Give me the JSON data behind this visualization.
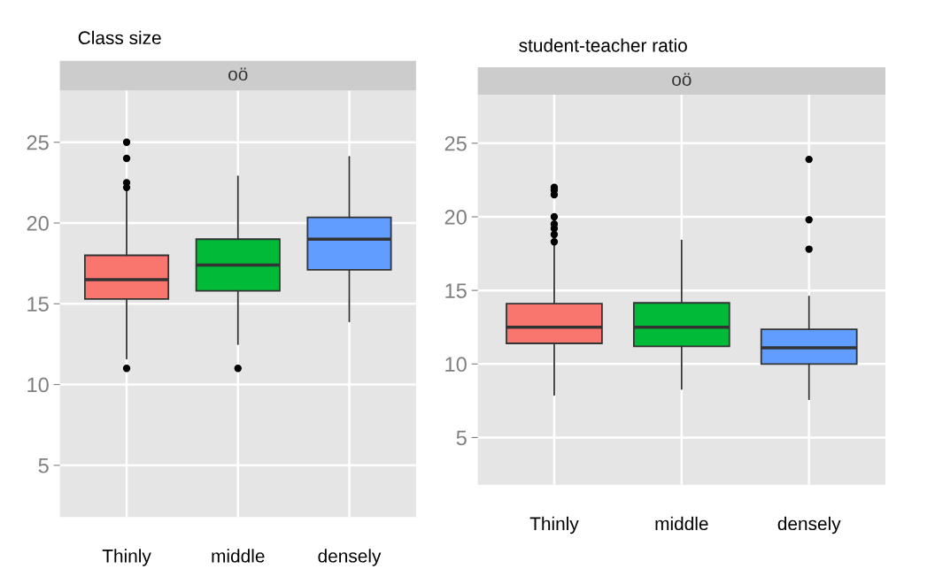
{
  "chart_data": [
    {
      "type": "box",
      "title": "Class size",
      "subtitle": "oö",
      "categories": [
        "Thinly",
        "middle",
        "densely"
      ],
      "colors": [
        "#f8766d",
        "#00ba38",
        "#619cff"
      ],
      "boxes": [
        {
          "low": 11.6,
          "q1": 15.3,
          "median": 16.5,
          "q3": 18.0,
          "high": 22.0,
          "outliers": [
            11.0,
            22.2,
            22.5,
            24.0,
            25.0
          ]
        },
        {
          "low": 12.5,
          "q1": 15.8,
          "median": 17.4,
          "q3": 19.0,
          "high": 22.9,
          "outliers": [
            11.0
          ]
        },
        {
          "low": 13.9,
          "q1": 17.1,
          "median": 19.0,
          "q3": 20.35,
          "high": 24.1
        }
      ],
      "ylim": [
        1.8,
        28.2
      ],
      "yticks": [
        5,
        10,
        15,
        20,
        25
      ],
      "grid": true
    },
    {
      "type": "box",
      "title": "student-teacher ratio",
      "subtitle": "oö",
      "categories": [
        "Thinly",
        "middle",
        "densely"
      ],
      "colors": [
        "#f8766d",
        "#00ba38",
        "#619cff"
      ],
      "boxes": [
        {
          "low": 7.9,
          "q1": 11.4,
          "median": 12.5,
          "q3": 14.1,
          "high": 18.1,
          "outliers": [
            18.3,
            18.8,
            19.2,
            19.5,
            20.0,
            21.5,
            21.8,
            22.0
          ]
        },
        {
          "low": 8.3,
          "q1": 11.2,
          "median": 12.5,
          "q3": 14.15,
          "high": 18.4
        },
        {
          "low": 7.6,
          "q1": 10.0,
          "median": 11.1,
          "q3": 12.35,
          "high": 14.6,
          "outliers": [
            17.8,
            19.8,
            23.9
          ]
        }
      ],
      "ylim": [
        1.8,
        28.3
      ],
      "yticks": [
        5,
        10,
        15,
        20,
        25
      ],
      "grid": true
    }
  ]
}
